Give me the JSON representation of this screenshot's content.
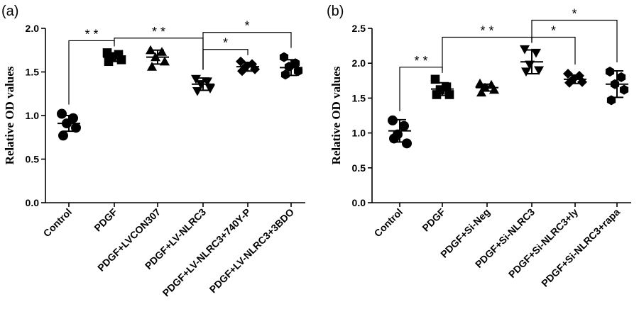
{
  "chart_data": [
    {
      "type": "scatter",
      "panel_label": "(a)",
      "ylabel": "Relative OD values",
      "xlabel": "",
      "ylim": [
        0,
        2.0
      ],
      "yticks": [
        "0.0",
        "0.5",
        "1.0",
        "1.5",
        "2.0"
      ],
      "grid": false,
      "categories": [
        "Control",
        "PDGF",
        "PDGF+LVCON307",
        "PDGF+LV-NLRC3",
        "PDGF+LV-NLRC3+740Y-P",
        "PDGF+LV-NLRC3+3BDO"
      ],
      "groups": [
        {
          "marker": "circle",
          "mean": 0.91,
          "sd": 0.09,
          "points": [
            1.02,
            0.97,
            0.91,
            0.86,
            0.77
          ]
        },
        {
          "marker": "square",
          "mean": 1.67,
          "sd": 0.05,
          "points": [
            1.72,
            1.7,
            1.67,
            1.64,
            1.62
          ]
        },
        {
          "marker": "triangle-up",
          "mean": 1.67,
          "sd": 0.08,
          "points": [
            1.75,
            1.73,
            1.67,
            1.62,
            1.56
          ]
        },
        {
          "marker": "triangle-down",
          "mean": 1.36,
          "sd": 0.07,
          "points": [
            1.42,
            1.39,
            1.36,
            1.31,
            1.28
          ]
        },
        {
          "marker": "diamond",
          "mean": 1.56,
          "sd": 0.05,
          "points": [
            1.62,
            1.59,
            1.56,
            1.53,
            1.51
          ]
        },
        {
          "marker": "hexagon",
          "mean": 1.55,
          "sd": 0.09,
          "points": [
            1.67,
            1.6,
            1.56,
            1.51,
            1.47
          ]
        }
      ],
      "significance": [
        {
          "from": 0,
          "to": 1,
          "label": "* *"
        },
        {
          "from": 1,
          "to": 3,
          "label": "* *"
        },
        {
          "from": 3,
          "to": 4,
          "label": "*"
        },
        {
          "from": 3,
          "to": 5,
          "label": "*"
        }
      ]
    },
    {
      "type": "scatter",
      "panel_label": "(b)",
      "ylabel": "Relative OD values",
      "xlabel": "",
      "ylim": [
        0,
        2.5
      ],
      "yticks": [
        "0.0",
        "0.5",
        "1.0",
        "1.5",
        "2.0",
        "2.5"
      ],
      "grid": false,
      "categories": [
        "Control",
        "PDGF",
        "PDGF+Si-Neg",
        "PDGF+Si-NLRC3",
        "PDGF+Si-NLRC3+ly",
        "PDGF+Si-NLRC3+rapa"
      ],
      "groups": [
        {
          "marker": "circle",
          "mean": 1.03,
          "sd": 0.16,
          "points": [
            1.18,
            1.1,
            0.98,
            0.85,
            0.92
          ]
        },
        {
          "marker": "square",
          "mean": 1.63,
          "sd": 0.09,
          "points": [
            1.77,
            1.66,
            1.62,
            1.55,
            1.55
          ]
        },
        {
          "marker": "triangle-up",
          "mean": 1.65,
          "sd": 0.05,
          "points": [
            1.71,
            1.69,
            1.65,
            1.62,
            1.58
          ]
        },
        {
          "marker": "triangle-down",
          "mean": 2.02,
          "sd": 0.17,
          "points": [
            2.2,
            2.15,
            1.98,
            1.9,
            1.88
          ]
        },
        {
          "marker": "diamond",
          "mean": 1.77,
          "sd": 0.06,
          "points": [
            1.85,
            1.82,
            1.77,
            1.73,
            1.72
          ]
        },
        {
          "marker": "hexagon",
          "mean": 1.7,
          "sd": 0.19,
          "points": [
            1.88,
            1.8,
            1.7,
            1.62,
            1.47
          ]
        }
      ],
      "significance": [
        {
          "from": 0,
          "to": 1,
          "label": "* *"
        },
        {
          "from": 1,
          "to": 3,
          "label": "* *"
        },
        {
          "from": 3,
          "to": 4,
          "label": "*"
        },
        {
          "from": 3,
          "to": 5,
          "label": "*"
        }
      ]
    }
  ]
}
